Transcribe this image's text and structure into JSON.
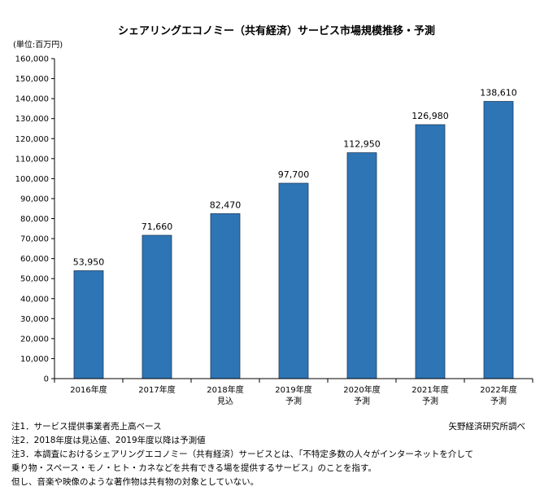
{
  "chart_data": {
    "type": "bar",
    "title": "シェアリングエコノミー（共有経済）サービス市場規模推移・予測",
    "unit_label": "(単位:百万円)",
    "categories": [
      [
        "2016年度"
      ],
      [
        "2017年度"
      ],
      [
        "2018年度",
        "見込"
      ],
      [
        "2019年度",
        "予測"
      ],
      [
        "2020年度",
        "予測"
      ],
      [
        "2021年度",
        "予測"
      ],
      [
        "2022年度",
        "予測"
      ]
    ],
    "values": [
      53950,
      71660,
      82470,
      97700,
      112950,
      126980,
      138610
    ],
    "value_labels": [
      "53,950",
      "71,660",
      "82,470",
      "97,700",
      "112,950",
      "126,980",
      "138,610"
    ],
    "y_ticks": [
      "0",
      "10,000",
      "20,000",
      "30,000",
      "40,000",
      "50,000",
      "60,000",
      "70,000",
      "80,000",
      "90,000",
      "100,000",
      "110,000",
      "120,000",
      "130,000",
      "140,000",
      "150,000",
      "160,000"
    ],
    "ylim": [
      0,
      160000
    ],
    "bar_color": "#2e75b6",
    "grid": false,
    "legend": false
  },
  "notes": [
    "注1．サービス提供事業者売上高ベース",
    "注2．2018年度は見込値、2019年度以降は予測値",
    "注3．本調査におけるシェアリングエコノミー（共有経済）サービスとは、「不特定多数の人々がインターネットを介して",
    "乗り物・スペース・モノ・ヒト・カネなどを共有できる場を提供するサービス」のことを指す。",
    "但し、音楽や映像のような著作物は共有物の対象としていない。"
  ],
  "source": "矢野経済研究所調べ"
}
